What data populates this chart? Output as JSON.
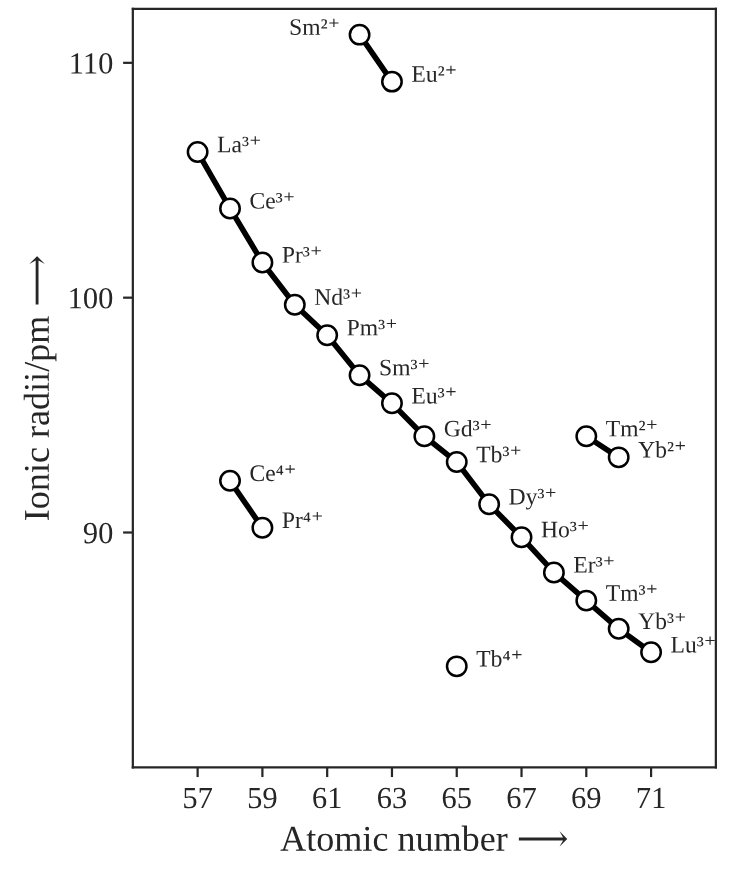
{
  "chart_data": {
    "type": "line",
    "xlabel": "Atomic number ⟶",
    "ylabel": "Ionic radii/pm ⟶",
    "xlim": [
      55,
      73
    ],
    "xticks": [
      57,
      59,
      61,
      63,
      65,
      67,
      69,
      71
    ],
    "ylim": [
      80,
      112.3
    ],
    "yticks": [
      90,
      100,
      110
    ],
    "marker": "circle",
    "line_style": "solid",
    "grid": false,
    "legend": false,
    "series": [
      {
        "color": "#000000",
        "x": [
          57,
          58,
          59,
          60,
          61,
          62,
          63,
          64,
          65,
          66,
          67,
          68,
          69,
          70,
          71
        ],
        "values": [
          106.2,
          103.8,
          101.5,
          99.7,
          98.4,
          96.7,
          95.5,
          94.1,
          93.0,
          91.2,
          89.8,
          88.3,
          87.1,
          85.9,
          84.9
        ]
      },
      {
        "color": "#000000",
        "x": [
          62,
          63
        ],
        "values": [
          111.2,
          109.2
        ]
      },
      {
        "color": "#000000",
        "x": [
          69,
          70
        ],
        "values": [
          94.1,
          93.2
        ]
      },
      {
        "color": "#000000",
        "x": [
          58,
          59
        ],
        "values": [
          92.2,
          90.2
        ]
      },
      {
        "type": "scatter",
        "color": "#000000",
        "x": [
          65
        ],
        "values": [
          84.3
        ]
      }
    ],
    "annotations": [
      {
        "text": "La³⁺",
        "x": 57,
        "y": 106.2
      },
      {
        "text": "Ce³⁺",
        "x": 58,
        "y": 103.8
      },
      {
        "text": "Pr³⁺",
        "x": 59,
        "y": 101.5
      },
      {
        "text": "Nd³⁺",
        "x": 60,
        "y": 99.7
      },
      {
        "text": "Pm³⁺",
        "x": 61,
        "y": 98.4
      },
      {
        "text": "Sm³⁺",
        "x": 62,
        "y": 96.7
      },
      {
        "text": "Eu³⁺",
        "x": 63,
        "y": 95.5
      },
      {
        "text": "Gd³⁺",
        "x": 64,
        "y": 94.1
      },
      {
        "text": "Tb³⁺",
        "x": 65,
        "y": 93.0
      },
      {
        "text": "Dy³⁺",
        "x": 66,
        "y": 91.2
      },
      {
        "text": "Ho³⁺",
        "x": 67,
        "y": 89.8
      },
      {
        "text": "Er³⁺",
        "x": 68,
        "y": 88.3
      },
      {
        "text": "Tm³⁺",
        "x": 69,
        "y": 87.1
      },
      {
        "text": "Yb³⁺",
        "x": 70,
        "y": 85.9
      },
      {
        "text": "Lu³⁺",
        "x": 71,
        "y": 84.9
      },
      {
        "text": "Sm²⁺",
        "x": 62,
        "y": 111.2
      },
      {
        "text": "Eu²⁺",
        "x": 63,
        "y": 109.2
      },
      {
        "text": "Tm²⁺",
        "x": 69,
        "y": 94.1
      },
      {
        "text": "Yb²⁺",
        "x": 70,
        "y": 93.2
      },
      {
        "text": "Ce⁴⁺",
        "x": 58,
        "y": 92.2
      },
      {
        "text": "Pr⁴⁺",
        "x": 59,
        "y": 90.2
      },
      {
        "text": "Tb⁴⁺",
        "x": 65,
        "y": 84.3
      }
    ]
  }
}
